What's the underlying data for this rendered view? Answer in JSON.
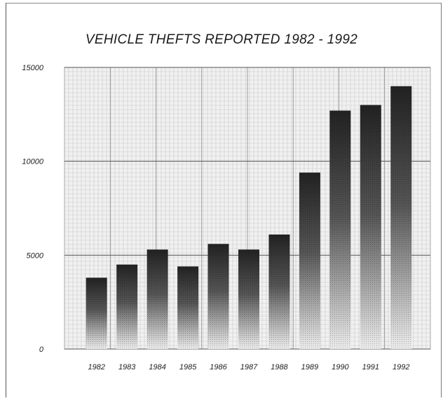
{
  "chart_data": {
    "type": "bar",
    "title": "VEHICLE THEFTS REPORTED 1982 - 1992",
    "xlabel": "",
    "ylabel": "",
    "categories": [
      "1982",
      "1983",
      "1984",
      "1985",
      "1986",
      "1987",
      "1988",
      "1989",
      "1990",
      "1991",
      "1992"
    ],
    "values": [
      3800,
      4500,
      5300,
      4400,
      5600,
      5300,
      6100,
      9400,
      12700,
      13000,
      14000
    ],
    "ylim": [
      0,
      15000
    ],
    "yticks": [
      0,
      5000,
      10000,
      15000
    ],
    "ytick_labels": [
      "0",
      "5000",
      "10000",
      "15000"
    ],
    "grid": true,
    "legend": "none"
  },
  "colors": {
    "bar_top": "#232323",
    "bar_bottom": "#e8e8e8",
    "grid_fine": "#c9c9c9",
    "grid_major": "#555555",
    "plot_background": "#f1f1f1"
  }
}
